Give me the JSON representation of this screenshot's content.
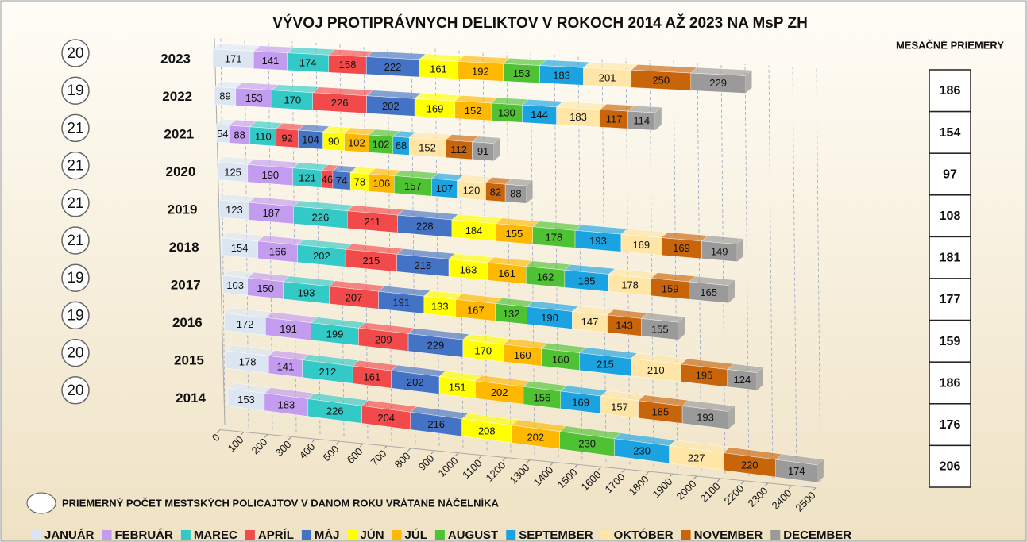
{
  "chart_data": {
    "type": "bar",
    "stacked": true,
    "orientation": "horizontal",
    "title": "VÝVOJ PROTIPRÁVNYCH DELIKTOV V ROKOCH 2014 AŽ 2023 NA MsP ZH",
    "categories": [
      "2023",
      "2022",
      "2021",
      "2020",
      "2019",
      "2018",
      "2017",
      "2016",
      "2015",
      "2014"
    ],
    "series": [
      {
        "name": "JANUÁR",
        "color": "#dce6f2",
        "values": [
          171,
          89,
          54,
          125,
          123,
          154,
          103,
          172,
          178,
          153
        ]
      },
      {
        "name": "FEBRUÁR",
        "color": "#c39bef",
        "values": [
          141,
          153,
          88,
          190,
          187,
          166,
          150,
          191,
          141,
          183
        ]
      },
      {
        "name": "MAREC",
        "color": "#33c9c6",
        "values": [
          174,
          170,
          110,
          121,
          226,
          202,
          193,
          199,
          212,
          226
        ]
      },
      {
        "name": "APRÍL",
        "color": "#f24a4a",
        "values": [
          158,
          226,
          92,
          46,
          211,
          215,
          207,
          209,
          161,
          204
        ]
      },
      {
        "name": "MÁJ",
        "color": "#4472c4",
        "values": [
          222,
          202,
          104,
          74,
          228,
          218,
          191,
          229,
          202,
          216
        ]
      },
      {
        "name": "JÚN",
        "color": "#ffff00",
        "values": [
          161,
          169,
          90,
          78,
          184,
          163,
          133,
          170,
          151,
          208
        ]
      },
      {
        "name": "JÚL",
        "color": "#ffb800",
        "values": [
          192,
          152,
          102,
          106,
          155,
          161,
          167,
          160,
          202,
          202
        ]
      },
      {
        "name": "AUGUST",
        "color": "#4fc233",
        "values": [
          153,
          130,
          102,
          157,
          178,
          162,
          132,
          160,
          156,
          230
        ]
      },
      {
        "name": "SEPTEMBER",
        "color": "#1aa3e0",
        "values": [
          183,
          144,
          68,
          107,
          193,
          185,
          190,
          215,
          169,
          230
        ]
      },
      {
        "name": "OKTÓBER",
        "color": "#ffe6a6",
        "values": [
          201,
          183,
          152,
          120,
          169,
          178,
          147,
          210,
          157,
          227
        ]
      },
      {
        "name": "NOVEMBER",
        "color": "#c8650a",
        "values": [
          250,
          117,
          112,
          82,
          169,
          159,
          143,
          195,
          185,
          220
        ]
      },
      {
        "name": "DECEMBER",
        "color": "#9a9a9a",
        "values": [
          229,
          114,
          91,
          88,
          149,
          165,
          155,
          124,
          193,
          174
        ]
      }
    ],
    "xlim": [
      0,
      2500
    ],
    "xticks": [
      0,
      100,
      200,
      300,
      400,
      500,
      600,
      700,
      800,
      900,
      1000,
      1100,
      1200,
      1300,
      1400,
      1500,
      1600,
      1700,
      1800,
      1900,
      2000,
      2100,
      2200,
      2300,
      2400,
      2500
    ],
    "grid": true,
    "officers": [
      20,
      19,
      21,
      21,
      21,
      21,
      19,
      19,
      20,
      20
    ],
    "officers_note": "PRIEMERNÝ POČET MESTSKÝCH POLICAJTOV V DANOM ROKU VRÁTANE NÁČELNÍKA",
    "averages_title": "MESAČNÉ PRIEMERY",
    "averages": [
      186,
      154,
      97,
      108,
      181,
      177,
      159,
      186,
      176,
      206
    ]
  }
}
